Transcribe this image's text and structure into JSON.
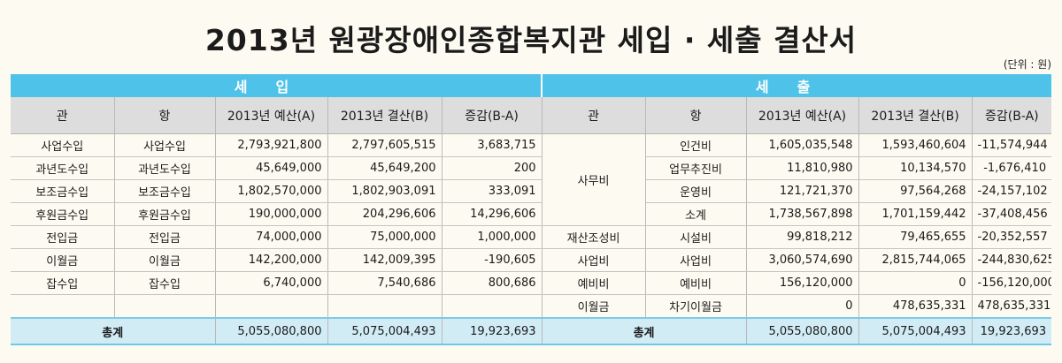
{
  "title": "2013년 원광장애인종합복지관 세입 · 세출 결산서",
  "unit": "(단위 : 원)",
  "sections": {
    "income": "세입",
    "expense": "세출"
  },
  "headers": {
    "income": [
      "관",
      "항",
      "2013년 예산(A)",
      "2013년 결산(B)",
      "증감(B-A)"
    ],
    "expense": [
      "관",
      "항",
      "2013년 예산(A)",
      "2013년 결산(B)",
      "증감(B-A)"
    ]
  },
  "income_rows": [
    [
      "사업수입",
      "사업수입",
      "2,793,921,800",
      "2,797,605,515",
      "3,683,715"
    ],
    [
      "과년도수입",
      "과년도수입",
      "45,649,000",
      "45,649,200",
      "200"
    ],
    [
      "보조금수입",
      "보조금수입",
      "1,802,570,000",
      "1,802,903,091",
      "333,091"
    ],
    [
      "후원금수입",
      "후원금수입",
      "190,000,000",
      "204,296,606",
      "14,296,606"
    ],
    [
      "전입금",
      "전입금",
      "74,000,000",
      "75,000,000",
      "1,000,000"
    ],
    [
      "이월금",
      "이월금",
      "142,200,000",
      "142,009,395",
      "-190,605"
    ],
    [
      "잡수입",
      "잡수입",
      "6,740,000",
      "7,540,686",
      "800,686"
    ],
    [
      "",
      "",
      "",
      "",
      ""
    ]
  ],
  "expense_groups": {
    "office": "사무비",
    "reserve": "재산조성비",
    "business": "사업비",
    "contingency": "예비비",
    "carryover": "이월금"
  },
  "expense_rows": [
    [
      "인건비",
      "1,605,035,548",
      "1,593,460,604",
      "-11,574,944"
    ],
    [
      "업무추진비",
      "11,810,980",
      "10,134,570",
      "-1,676,410"
    ],
    [
      "운영비",
      "121,721,370",
      "97,564,268",
      "-24,157,102"
    ],
    [
      "소계",
      "1,738,567,898",
      "1,701,159,442",
      "-37,408,456"
    ],
    [
      "시설비",
      "99,818,212",
      "79,465,655",
      "-20,352,557"
    ],
    [
      "사업비",
      "3,060,574,690",
      "2,815,744,065",
      "-244,830,625"
    ],
    [
      "예비비",
      "156,120,000",
      "0",
      "-156,120,000"
    ],
    [
      "차기이월금",
      "0",
      "478,635,331",
      "478,635,331"
    ]
  ],
  "total": {
    "label": "총계",
    "income": [
      "5,055,080,800",
      "5,075,004,493",
      "19,923,693"
    ],
    "expense": [
      "5,055,080,800",
      "5,075,004,493",
      "19,923,693"
    ]
  }
}
